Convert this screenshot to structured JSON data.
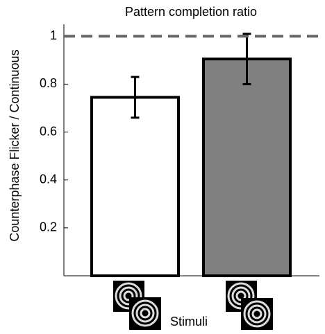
{
  "chart_data": {
    "type": "bar",
    "title": "Pattern completion ratio",
    "y_label": "Counterphase Flicker / Continuous",
    "x_label": "Stimuli",
    "categories": [
      null,
      null
    ],
    "values": [
      0.745,
      0.905
    ],
    "errors": [
      0.085,
      0.105
    ],
    "colors": [
      "#ffffff",
      "#808080"
    ],
    "ylim": [
      0,
      1.05
    ],
    "yticks": [
      0.2,
      0.4,
      0.6,
      0.8,
      1
    ],
    "reference_line": {
      "value": 1,
      "color": "#666666",
      "style": "dashed"
    }
  }
}
